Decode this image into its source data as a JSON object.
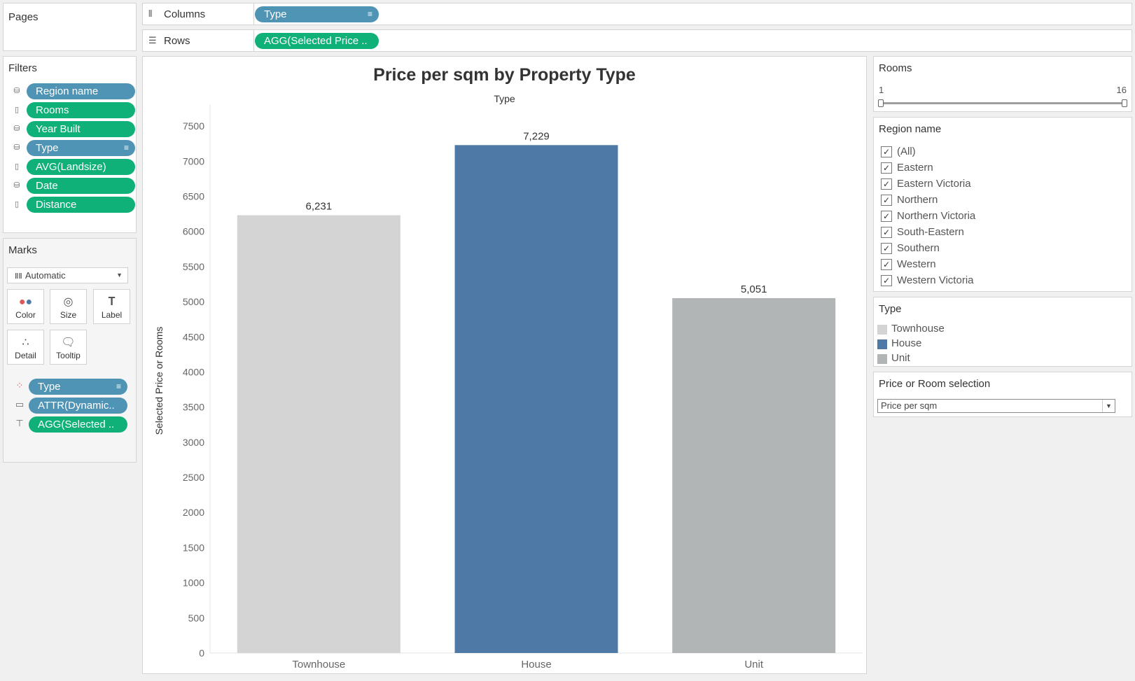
{
  "pages": {
    "title": "Pages"
  },
  "shelves": {
    "columns": {
      "label": "Columns",
      "icon": "columns-icon",
      "pill": "Type"
    },
    "rows": {
      "label": "Rows",
      "icon": "rows-icon",
      "pill": "AGG(Selected Price .."
    }
  },
  "filters": {
    "title": "Filters",
    "items": [
      {
        "label": "Region name",
        "color": "blue",
        "icon": "dataset-filter-icon"
      },
      {
        "label": "Rooms",
        "color": "green",
        "icon": "measure-icon"
      },
      {
        "label": "Year Built",
        "color": "green",
        "icon": "dataset-filter-icon"
      },
      {
        "label": "Type",
        "color": "blue",
        "icon": "dataset-filter-icon",
        "sorted": true
      },
      {
        "label": "AVG(Landsize)",
        "color": "green",
        "icon": "measure-icon"
      },
      {
        "label": "Date",
        "color": "green",
        "icon": "dataset-filter-icon"
      },
      {
        "label": "Distance",
        "color": "green",
        "icon": "measure-icon"
      }
    ]
  },
  "marks": {
    "title": "Marks",
    "mark_type": "Automatic",
    "cards": [
      "Color",
      "Size",
      "Label",
      "Detail",
      "Tooltip"
    ],
    "pills": [
      {
        "label": "Type",
        "color": "blue",
        "icon": "color-icon",
        "sorted": true
      },
      {
        "label": "ATTR(Dynamic..",
        "color": "blue",
        "icon": "tooltip-icon"
      },
      {
        "label": "AGG(Selected ..",
        "color": "green",
        "icon": "label-icon"
      }
    ]
  },
  "chart": {
    "title": "Price per sqm by Property Type",
    "subtitle": "Type",
    "ylabel": "Selected Price or Rooms"
  },
  "chart_data": {
    "type": "bar",
    "title": "Price per sqm by Property Type",
    "xlabel": "Type",
    "ylabel": "Selected Price or Rooms",
    "categories": [
      "Townhouse",
      "House",
      "Unit"
    ],
    "values": [
      6231,
      7229,
      5051
    ],
    "value_labels": [
      "6,231",
      "7,229",
      "5,051"
    ],
    "colors": [
      "#d4d4d4",
      "#4e79a7",
      "#b2b5b6"
    ],
    "yticks": [
      0,
      500,
      1000,
      1500,
      2000,
      2500,
      3000,
      3500,
      4000,
      4500,
      5000,
      5500,
      6000,
      6500,
      7000,
      7500
    ],
    "ylim": [
      0,
      7800
    ],
    "grid": false,
    "legend": "right"
  },
  "rooms_filter": {
    "title": "Rooms",
    "min": "1",
    "max": "16"
  },
  "region_filter": {
    "title": "Region name",
    "items": [
      "(All)",
      "Eastern",
      "Eastern Victoria",
      "Northern",
      "Northern Victoria",
      "South-Eastern",
      "Southern",
      "Western",
      "Western Victoria"
    ]
  },
  "type_legend": {
    "title": "Type",
    "items": [
      {
        "label": "Townhouse",
        "color": "#d4d4d4"
      },
      {
        "label": "House",
        "color": "#4e79a7"
      },
      {
        "label": "Unit",
        "color": "#b2b5b6"
      }
    ]
  },
  "parameter": {
    "title": "Price or Room selection",
    "value": "Price per sqm"
  },
  "colors": {
    "pill_blue": "#4f94b5",
    "pill_green": "#10b079"
  }
}
